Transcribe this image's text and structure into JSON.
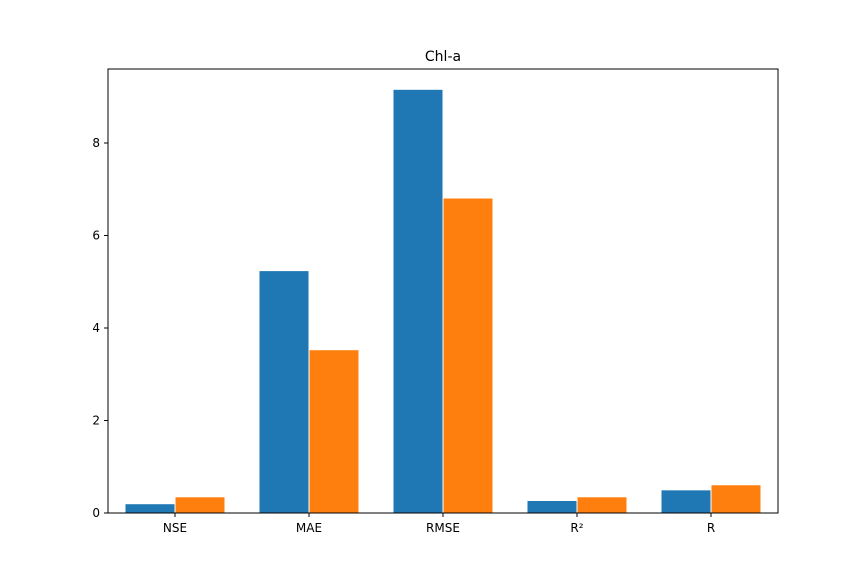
{
  "chart_data": {
    "type": "bar",
    "title": "Chl-a",
    "xlabel": "",
    "ylabel": "",
    "categories": [
      "NSE",
      "MAE",
      "RMSE",
      "R²",
      "R"
    ],
    "series": [
      {
        "values": [
          0.19,
          5.23,
          9.15,
          0.26,
          0.49
        ],
        "color": "#1f77b4"
      },
      {
        "values": [
          0.34,
          3.52,
          6.8,
          0.34,
          0.6
        ],
        "color": "#ff7f0e"
      }
    ],
    "ylim": [
      0,
      9.6
    ],
    "yticks": [
      0,
      2,
      4,
      6,
      8
    ],
    "grid": false,
    "legend": false
  }
}
